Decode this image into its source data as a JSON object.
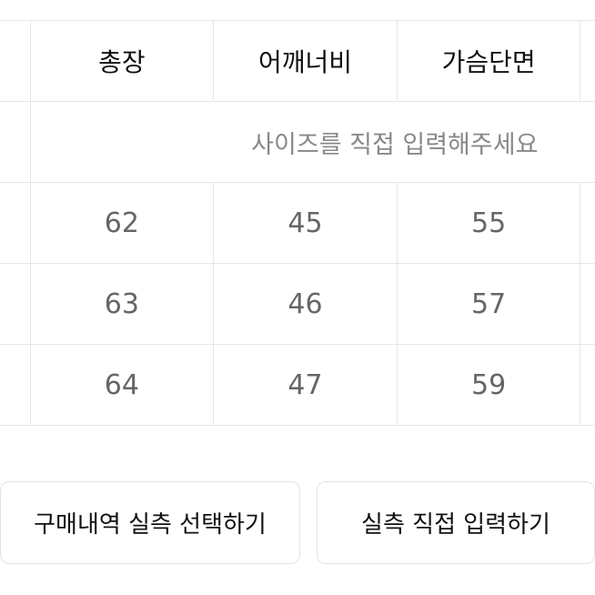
{
  "table": {
    "headers": [
      "",
      "총장",
      "어깨너비",
      "가슴단면",
      ""
    ],
    "note": "사이즈를 직접 입력해주세요",
    "rows": [
      [
        "",
        "62",
        "45",
        "55",
        ""
      ],
      [
        "",
        "63",
        "46",
        "57",
        ""
      ],
      [
        "",
        "64",
        "47",
        "59",
        ""
      ]
    ]
  },
  "buttons": {
    "select_history": "구매내역 실측 선택하기",
    "direct_input": "실측 직접 입력하기"
  }
}
